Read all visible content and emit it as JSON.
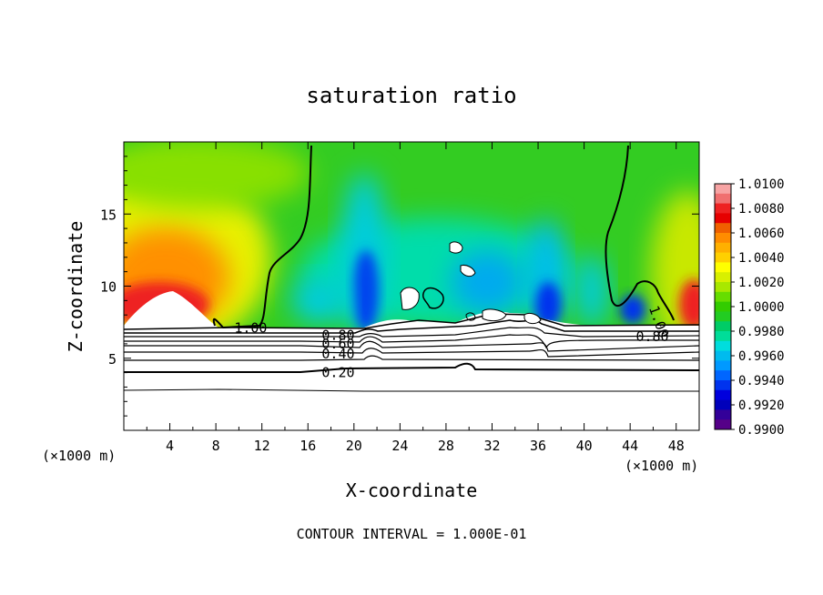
{
  "chart_data": {
    "type": "heatmap",
    "title": "saturation ratio",
    "xlabel": "X-coordinate",
    "ylabel": "Z-coordinate",
    "x_unit_left": "(×1000 m)",
    "x_unit_right": "(×1000 m)",
    "xlim": [
      0,
      50
    ],
    "ylim": [
      0,
      20
    ],
    "x_ticks": [
      4,
      8,
      12,
      16,
      20,
      24,
      28,
      32,
      36,
      40,
      44,
      48
    ],
    "y_ticks": [
      5,
      10,
      15
    ],
    "footer": "CONTOUR INTERVAL = 1.000E-01",
    "colorbar": {
      "labels": [
        "1.0100",
        "1.0080",
        "1.0060",
        "1.0040",
        "1.0020",
        "1.0000",
        "0.9980",
        "0.9960",
        "0.9940",
        "0.9920",
        "0.9900"
      ],
      "colors": [
        "#f7a4a4",
        "#f07070",
        "#ee2222",
        "#e60000",
        "#f06000",
        "#ff8c00",
        "#ffb000",
        "#ffd000",
        "#ffff00",
        "#d8f000",
        "#a8e800",
        "#66dd00",
        "#33cc00",
        "#22cc22",
        "#00cc66",
        "#00dd99",
        "#00dddd",
        "#00bbee",
        "#0099ff",
        "#0066ff",
        "#0033ee",
        "#0000dd",
        "#0000bb",
        "#330099",
        "#550088"
      ]
    },
    "contours": [
      {
        "label": "1.00",
        "z": 7.1,
        "x": 9.6
      },
      {
        "label": "0.80",
        "z": 6.6,
        "x": 17.2
      },
      {
        "label": "0.60",
        "z": 6.0,
        "x": 17.2
      },
      {
        "label": "0.40",
        "z": 5.3,
        "x": 17.2
      },
      {
        "label": "0.20",
        "z": 4.0,
        "x": 17.2
      },
      {
        "label": "0.80",
        "z": 6.5,
        "x": 44.5
      },
      {
        "label": "1.00",
        "z": 8.6,
        "x": 46.0
      }
    ]
  }
}
